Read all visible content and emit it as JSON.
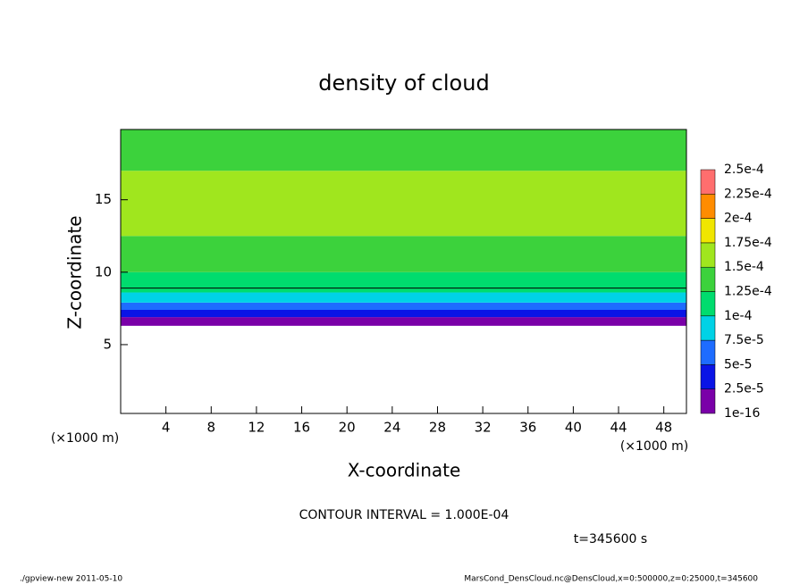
{
  "chart_data": {
    "type": "contour",
    "title": "density of cloud",
    "x_label": "X-coordinate",
    "y_label": "Z-coordinate",
    "x_unit": "(×1000 m)",
    "y_unit": "(×1000 m)",
    "xlim": [
      0,
      50
    ],
    "xticks": [
      4,
      8,
      12,
      16,
      20,
      24,
      28,
      32,
      36,
      40,
      44,
      48
    ],
    "ylim": [
      0.25,
      19.85
    ],
    "yticks": [
      5,
      10,
      15
    ],
    "ybins": [
      6.3,
      6.9,
      7.4,
      7.9,
      8.6,
      10,
      12.5,
      17,
      19.85
    ],
    "values": [
      1.2e-05,
      3.5e-05,
      6e-05,
      8.5e-05,
      0.00011,
      0.00014,
      0.000155,
      0.00013
    ],
    "contour": {
      "value": 0.0001,
      "z": 8.9
    },
    "levels": [
      {
        "value": 1e-16,
        "label": "1e-16"
      },
      {
        "value": 2.5e-05,
        "label": "2.5e-5"
      },
      {
        "value": 5e-05,
        "label": "5e-5"
      },
      {
        "value": 7.5e-05,
        "label": "7.5e-5"
      },
      {
        "value": 0.0001,
        "label": "1e-4"
      },
      {
        "value": 0.000125,
        "label": "1.25e-4"
      },
      {
        "value": 0.00015,
        "label": "1.5e-4"
      },
      {
        "value": 0.000175,
        "label": "1.75e-4"
      },
      {
        "value": 0.0002,
        "label": "2e-4"
      },
      {
        "value": 0.000225,
        "label": "2.25e-4"
      },
      {
        "value": 0.00025,
        "label": "2.5e-4"
      }
    ],
    "colors": [
      "#7a00a8",
      "#0a14e6",
      "#1e6cff",
      "#00d2e6",
      "#00dc6e",
      "#3cd23c",
      "#a0e61e",
      "#f0e600",
      "#ff8c00",
      "#ff6e6e"
    ],
    "contour_interval": "CONTOUR INTERVAL = 1.000E-04",
    "time": "t=345600 s",
    "footer_left": "./gpview-new  2011-05-10",
    "footer_right": "MarsCond_DensCloud.nc@DensCloud,x=0:500000,z=0:25000,t=345600"
  }
}
